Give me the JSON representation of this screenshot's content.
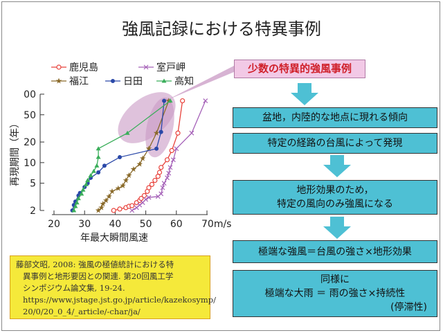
{
  "title": "強風記録における特異事例",
  "callout": "少数の特異的強風事例",
  "boxes": [
    [
      "盆地，内陸的な地点に現れる傾向"
    ],
    [
      "特定の経路の台風によって発現"
    ],
    [
      "地形効果のため，",
      "特定の風向のみ強風になる"
    ],
    [
      "極端な強風＝台風の強さ×地形効果"
    ],
    [
      "同様に",
      "極端な大雨 ＝ 雨の強さ×持続性",
      "(停滞性)"
    ]
  ],
  "reference": [
    "藤部文昭, 2008: 強風の極値統計における特",
    "異事例と地形要因との関連. 第20回風工学",
    "シンポジウム論文集, 19-24.",
    "https://www.jstage.jst.go.jp/article/kazekosymp/",
    "20/0/20_0_4/_article/-char/ja/"
  ],
  "colors": {
    "box": "#4ec0d4",
    "callout": "#f2c9e6",
    "highlight": "#c99ac4",
    "reference": "#f5e93a"
  },
  "chart_data": {
    "type": "line",
    "xlabel": "年最大瞬間風速",
    "ylabel": "再現期間（年）",
    "xlim": [
      20,
      70
    ],
    "ylim": [
      2,
      100
    ],
    "yscale": "log",
    "xticks": [
      "20",
      "30",
      "40",
      "50",
      "60",
      "70m/s"
    ],
    "xtick_values": [
      20,
      30,
      40,
      50,
      60,
      70
    ],
    "yticks": [
      "00",
      "50",
      "20",
      "10",
      "5",
      "2"
    ],
    "ytick_values": [
      100,
      50,
      20,
      10,
      5,
      2
    ],
    "legend_placement": "top",
    "series": [
      {
        "name": "鹿児島",
        "color": "#e8413a",
        "marker": "circle-open",
        "points": [
          [
            39.5,
            2
          ],
          [
            41.5,
            2.1
          ],
          [
            43.5,
            2.2
          ],
          [
            44.5,
            2.3
          ],
          [
            45.5,
            2.35
          ],
          [
            47,
            2.6
          ],
          [
            48,
            2.8
          ],
          [
            48.5,
            3
          ],
          [
            49.5,
            3.3
          ],
          [
            50.5,
            3.8
          ],
          [
            51,
            4.3
          ],
          [
            52,
            4.8
          ],
          [
            53,
            5.5
          ],
          [
            54,
            6.3
          ],
          [
            54.5,
            7.2
          ],
          [
            55,
            8.5
          ],
          [
            57,
            11
          ],
          [
            58.5,
            15
          ],
          [
            60.5,
            27
          ],
          [
            62,
            80
          ]
        ]
      },
      {
        "name": "室戸岬",
        "color": "#a561b8",
        "marker": "x",
        "points": [
          [
            45.5,
            2
          ],
          [
            47,
            2.2
          ],
          [
            48,
            2.4
          ],
          [
            49,
            2.6
          ],
          [
            50,
            2.9
          ],
          [
            51,
            3.1
          ],
          [
            54,
            3.2
          ],
          [
            55,
            3.5
          ],
          [
            55.5,
            4.3
          ],
          [
            56,
            5
          ],
          [
            57,
            6
          ],
          [
            57.5,
            7
          ],
          [
            58,
            8.5
          ],
          [
            59,
            11
          ],
          [
            60,
            16
          ],
          [
            65,
            27
          ],
          [
            69.5,
            80
          ]
        ]
      },
      {
        "name": "福江",
        "color": "#8a6a2a",
        "marker": "star",
        "points": [
          [
            34.5,
            2
          ],
          [
            35.5,
            2.2
          ],
          [
            36,
            2.5
          ],
          [
            37,
            2.8
          ],
          [
            38,
            3.2
          ],
          [
            39,
            3.8
          ],
          [
            41,
            4.2
          ],
          [
            42.5,
            4.6
          ],
          [
            43.5,
            5.5
          ],
          [
            44.5,
            6.5
          ],
          [
            46,
            8
          ],
          [
            48,
            9.5
          ],
          [
            49,
            11.5
          ],
          [
            51,
            16
          ],
          [
            53.5,
            27
          ],
          [
            57.5,
            80
          ]
        ]
      },
      {
        "name": "日田",
        "color": "#2a48a8",
        "marker": "circle",
        "points": [
          [
            26,
            2
          ],
          [
            26.5,
            2.4
          ],
          [
            27,
            2.7
          ],
          [
            28,
            3.3
          ],
          [
            28.5,
            3.6
          ],
          [
            30,
            4.4
          ],
          [
            31,
            5
          ],
          [
            32,
            6
          ],
          [
            34.5,
            7.2
          ],
          [
            36.5,
            9
          ],
          [
            41.5,
            12
          ],
          [
            53.5,
            16
          ],
          [
            55,
            28
          ],
          [
            56,
            80
          ]
        ]
      },
      {
        "name": "高知",
        "color": "#3aae5a",
        "marker": "triangle",
        "points": [
          [
            26.5,
            2
          ],
          [
            27,
            2.3
          ],
          [
            27.5,
            2.6
          ],
          [
            28,
            3
          ],
          [
            29,
            3.5
          ],
          [
            29.5,
            4
          ],
          [
            30.5,
            4.8
          ],
          [
            31,
            5.5
          ],
          [
            32,
            6.5
          ],
          [
            33,
            7.5
          ],
          [
            34,
            9
          ],
          [
            34.5,
            12
          ],
          [
            34.5,
            16
          ],
          [
            44,
            27
          ],
          [
            58,
            80
          ]
        ]
      }
    ]
  }
}
